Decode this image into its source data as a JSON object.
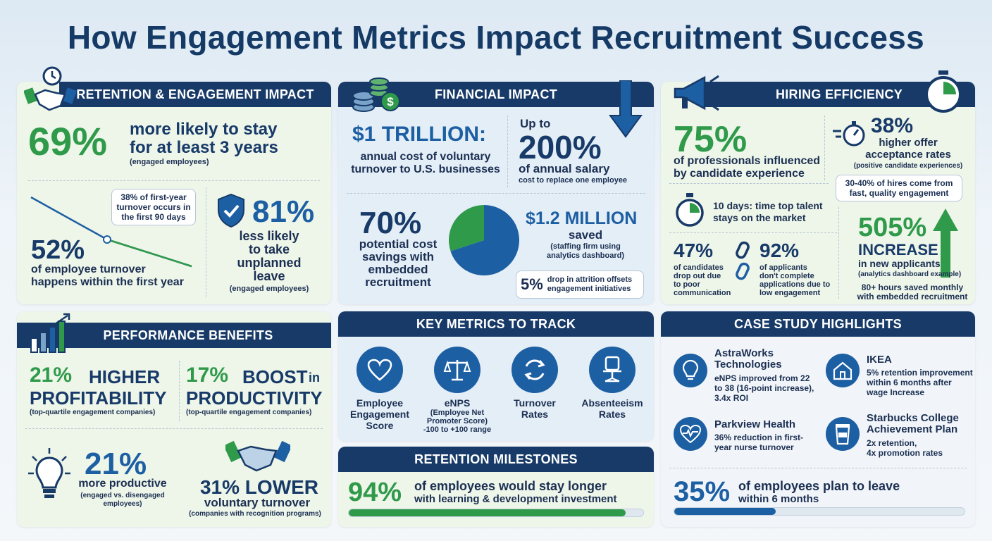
{
  "title": "How Engagement Metrics Impact Recruitment Success",
  "colors": {
    "navy": "#173a68",
    "green": "#2f9a4a",
    "blue": "#1d5fa3"
  },
  "retention": {
    "header": "RETENTION & ENGAGEMENT IMPACT",
    "stat69": "69%",
    "stat69_text1": "more likely to stay",
    "stat69_text2": "for at least 3 years",
    "stat69_note": "(engaged employees)",
    "callout1": "38% of first-year",
    "callout2": "turnover occurs in",
    "callout3": "the first 90 days",
    "stat52": "52%",
    "stat52_text1": "of employee turnover",
    "stat52_text2": "happens within the first year",
    "stat81": "81%",
    "stat81_text1": "less likely",
    "stat81_text2": "to take",
    "stat81_text3": "unplanned",
    "stat81_text4": "leave",
    "stat81_note": "(engaged employees)"
  },
  "financial": {
    "header": "FINANCIAL IMPACT",
    "trillion": "$1 TRILLION:",
    "trillion_text1": "annual cost of voluntary",
    "trillion_text2": "turnover to U.S. businesses",
    "upto": "Up to",
    "stat200": "200%",
    "stat200_text": "of annual salary",
    "stat200_note": "cost to replace one employee",
    "stat70": "70%",
    "stat70_text1": "potential cost",
    "stat70_text2": "savings with",
    "stat70_text3": "embedded",
    "stat70_text4": "recruitment",
    "pie_share": 0.3,
    "million": "$1.2 MILLION",
    "million_text": "saved",
    "million_note1": "(staffing firm using",
    "million_note2": "analytics dashboard)",
    "drop_stat": "5%",
    "drop_text1": "drop in attrition offsets",
    "drop_text2": "engagement initiatives"
  },
  "hiring": {
    "header": "HIRING EFFICIENCY",
    "stat75": "75%",
    "stat75_text1": "of professionals influenced",
    "stat75_text2": "by candidate experience",
    "stat38": "38%",
    "stat38_text1": "higher offer",
    "stat38_text2": "acceptance rates",
    "stat38_note": "(positive candidate experiences)",
    "callout1": "30-40% of hires come from",
    "callout2": "fast, quality engagement",
    "days1": "10 days: time top talent",
    "days2": "stays on the market",
    "stat505": "505%",
    "increase": "INCREASE",
    "increase_text": "in new applicants",
    "increase_note": "(analytics dashboard example)",
    "hours1": "80+ hours saved monthly",
    "hours2": "with embedded recruitment",
    "stat47": "47%",
    "stat47_text": [
      "of candidates",
      "drop out due",
      "to poor",
      "communication"
    ],
    "stat92": "92%",
    "stat92_text": [
      "of applicants",
      "don't complete",
      "applications due to",
      "low engagement"
    ]
  },
  "performance": {
    "header": "PERFORMANCE BENEFITS",
    "stat21a": "21%",
    "stat21a_word": "HIGHER",
    "stat21a_word2": "PROFITABILITY",
    "stat21a_note": "(top-quartile engagement companies)",
    "stat17": "17%",
    "stat17_word": "BOOST",
    "stat17_in": "in",
    "stat17_word2": "PRODUCTIVITY",
    "stat17_note": "(top-quartile engagement companies)",
    "stat21b": "21%",
    "stat21b_text": "more productive",
    "stat21b_note1": "(engaged vs. disengaged",
    "stat21b_note2": "employees)",
    "stat31": "31% LOWER",
    "stat31_text": "voluntary turnover",
    "stat31_note": "(companies with recognition programs)"
  },
  "metrics": {
    "header": "KEY METRICS TO TRACK",
    "items": [
      {
        "icon": "heart-icon",
        "label1": "Employee",
        "label2": "Engagement",
        "label3": "Score"
      },
      {
        "icon": "scale-icon",
        "label1": "eNPS",
        "note1": "(Employee Net",
        "note2": "Promoter Score)",
        "note3": "-100 to +100 range"
      },
      {
        "icon": "refresh-icon",
        "label1": "Turnover",
        "label2": "Rates"
      },
      {
        "icon": "chair-icon",
        "label1": "Absenteeism",
        "label2": "Rates"
      }
    ]
  },
  "milestones": {
    "header": "RETENTION MILESTONES",
    "stat94": "94%",
    "text1": "of employees would stay longer",
    "text2": "with learning & development investment",
    "progress": 0.94
  },
  "cases": {
    "header": "CASE STUDY HIGHLIGHTS",
    "items": [
      {
        "icon": "lightbulb-icon",
        "name1": "AstraWorks",
        "name2": "Technologies",
        "d1": "eNPS improved from 22",
        "d2": "to 38 (16-point increase),",
        "d3": "3.4x ROI"
      },
      {
        "icon": "house-icon",
        "name1": "IKEA",
        "d1": "5% retention improvement",
        "d2": "within 6 months after",
        "d3": "wage Increase"
      },
      {
        "icon": "heartbeat-icon",
        "name1": "Parkview Health",
        "d1": "36% reduction in first-",
        "d2": "year nurse turnover"
      },
      {
        "icon": "coffee-cup-icon",
        "name1": "Starbucks College",
        "name2": "Achievement Plan",
        "d1": "2x retention,",
        "d2": "4x promotion rates"
      }
    ],
    "stat35": "35%",
    "text1": "of employees plan to leave",
    "text2": "within 6 months",
    "progress": 0.35
  }
}
